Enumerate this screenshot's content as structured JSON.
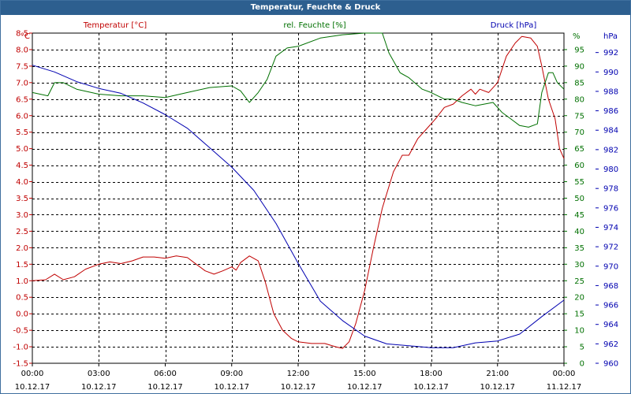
{
  "window_title": "Temperatur, Feuchte & Druck",
  "colors": {
    "temperature": "#c00000",
    "humidity": "#007000",
    "pressure": "#0000b0",
    "titlebar": "#2d5f8f",
    "grid": "#000000"
  },
  "chart_data": {
    "type": "line",
    "title": "Temperatur, Feuchte & Druck",
    "x_hours": [
      0,
      24
    ],
    "x_ticks": [
      {
        "time": "00:00",
        "date": "10.12.17",
        "h": 0
      },
      {
        "time": "03:00",
        "date": "10.12.17",
        "h": 3
      },
      {
        "time": "06:00",
        "date": "10.12.17",
        "h": 6
      },
      {
        "time": "09:00",
        "date": "10.12.17",
        "h": 9
      },
      {
        "time": "12:00",
        "date": "10.12.17",
        "h": 12
      },
      {
        "time": "15:00",
        "date": "10.12.17",
        "h": 15
      },
      {
        "time": "18:00",
        "date": "10.12.17",
        "h": 18
      },
      {
        "time": "21:00",
        "date": "10.12.17",
        "h": 21
      },
      {
        "time": "00:00",
        "date": "11.12.17",
        "h": 24
      }
    ],
    "axes": {
      "temperature": {
        "label": "Temperatur [°C]",
        "unit": "°C",
        "min": -1.5,
        "max": 8.5,
        "ticks": [
          "8.5",
          "8.0",
          "7.5",
          "7.0",
          "6.5",
          "6.0",
          "5.5",
          "5.0",
          "4.5",
          "4.0",
          "3.5",
          "3.0",
          "2.5",
          "2.0",
          "1.5",
          "1.0",
          "0.5",
          "0.0",
          "-0.5",
          "-1.0",
          "-1.5"
        ]
      },
      "humidity": {
        "label": "rel. Feuchte [%]",
        "unit": "%",
        "min": 0,
        "max": 100,
        "ticks": [
          "95",
          "90",
          "85",
          "80",
          "75",
          "70",
          "65",
          "60",
          "55",
          "50",
          "45",
          "40",
          "35",
          "30",
          "25",
          "20",
          "15",
          "10",
          "5",
          "0"
        ]
      },
      "pressure": {
        "label": "Druck [hPa]",
        "unit": "hPa",
        "min": 960,
        "max": 994,
        "ticks": [
          "992",
          "990",
          "988",
          "986",
          "984",
          "982",
          "980",
          "978",
          "976",
          "974",
          "972",
          "970",
          "968",
          "966",
          "964",
          "962",
          "960"
        ]
      }
    },
    "series": [
      {
        "name": "Temperatur",
        "axis": "temperature",
        "points": [
          [
            0,
            1.0
          ],
          [
            0.6,
            1.03
          ],
          [
            1.0,
            1.2
          ],
          [
            1.4,
            1.03
          ],
          [
            1.9,
            1.12
          ],
          [
            2.4,
            1.35
          ],
          [
            3.0,
            1.5
          ],
          [
            3.5,
            1.57
          ],
          [
            4.0,
            1.52
          ],
          [
            4.5,
            1.6
          ],
          [
            5.0,
            1.72
          ],
          [
            5.5,
            1.72
          ],
          [
            6.0,
            1.68
          ],
          [
            6.5,
            1.75
          ],
          [
            7.0,
            1.7
          ],
          [
            7.4,
            1.5
          ],
          [
            7.8,
            1.3
          ],
          [
            8.2,
            1.2
          ],
          [
            8.6,
            1.3
          ],
          [
            9.0,
            1.42
          ],
          [
            9.2,
            1.32
          ],
          [
            9.4,
            1.55
          ],
          [
            9.8,
            1.75
          ],
          [
            10.2,
            1.6
          ],
          [
            10.5,
            1.0
          ],
          [
            10.9,
            0.0
          ],
          [
            11.3,
            -0.5
          ],
          [
            11.7,
            -0.75
          ],
          [
            12.0,
            -0.85
          ],
          [
            12.6,
            -0.9
          ],
          [
            13.2,
            -0.9
          ],
          [
            13.7,
            -1.0
          ],
          [
            14.0,
            -1.05
          ],
          [
            14.3,
            -0.85
          ],
          [
            14.6,
            -0.3
          ],
          [
            15.0,
            0.7
          ],
          [
            15.4,
            2.0
          ],
          [
            15.8,
            3.2
          ],
          [
            16.3,
            4.3
          ],
          [
            16.7,
            4.8
          ],
          [
            17.0,
            4.8
          ],
          [
            17.4,
            5.3
          ],
          [
            17.8,
            5.6
          ],
          [
            18.2,
            5.9
          ],
          [
            18.6,
            6.25
          ],
          [
            19.0,
            6.35
          ],
          [
            19.4,
            6.6
          ],
          [
            19.8,
            6.8
          ],
          [
            20.0,
            6.65
          ],
          [
            20.2,
            6.8
          ],
          [
            20.6,
            6.7
          ],
          [
            21.0,
            7.0
          ],
          [
            21.4,
            7.8
          ],
          [
            21.8,
            8.2
          ],
          [
            22.1,
            8.4
          ],
          [
            22.5,
            8.35
          ],
          [
            22.8,
            8.1
          ],
          [
            23.0,
            7.5
          ],
          [
            23.3,
            6.5
          ],
          [
            23.6,
            5.9
          ],
          [
            23.8,
            5.0
          ],
          [
            24.0,
            4.7
          ]
        ]
      },
      {
        "name": "rel. Feuchte",
        "axis": "humidity",
        "points": [
          [
            0,
            82
          ],
          [
            0.7,
            81
          ],
          [
            1.0,
            85
          ],
          [
            1.4,
            85
          ],
          [
            2.0,
            83
          ],
          [
            3.0,
            81.5
          ],
          [
            4.0,
            81
          ],
          [
            5.0,
            81
          ],
          [
            6.0,
            80.5
          ],
          [
            7.0,
            82
          ],
          [
            8.0,
            83.5
          ],
          [
            9.0,
            84
          ],
          [
            9.4,
            82.5
          ],
          [
            9.8,
            79
          ],
          [
            10.2,
            82
          ],
          [
            10.6,
            86
          ],
          [
            11.0,
            93
          ],
          [
            11.5,
            95.5
          ],
          [
            12.0,
            96
          ],
          [
            13.0,
            98.5
          ],
          [
            14.0,
            99.5
          ],
          [
            15.0,
            100
          ],
          [
            15.8,
            100
          ],
          [
            16.1,
            94
          ],
          [
            16.6,
            88
          ],
          [
            17.0,
            86.5
          ],
          [
            17.6,
            83
          ],
          [
            18.0,
            82
          ],
          [
            18.6,
            80
          ],
          [
            19.0,
            80
          ],
          [
            19.4,
            79
          ],
          [
            20.0,
            78
          ],
          [
            20.4,
            78.5
          ],
          [
            20.8,
            79
          ],
          [
            21.2,
            76
          ],
          [
            21.6,
            74
          ],
          [
            22.0,
            72
          ],
          [
            22.4,
            71.5
          ],
          [
            22.8,
            72.5
          ],
          [
            23.0,
            82
          ],
          [
            23.3,
            88
          ],
          [
            23.5,
            88
          ],
          [
            23.7,
            85
          ],
          [
            24.0,
            83
          ]
        ]
      },
      {
        "name": "Druck",
        "axis": "pressure",
        "points": [
          [
            0,
            990.7
          ],
          [
            1.0,
            990.0
          ],
          [
            2.0,
            989.0
          ],
          [
            3.0,
            988.3
          ],
          [
            4.0,
            987.8
          ],
          [
            5.0,
            986.8
          ],
          [
            6.0,
            985.6
          ],
          [
            7.0,
            984.2
          ],
          [
            8.0,
            982.2
          ],
          [
            9.0,
            980.2
          ],
          [
            10.0,
            977.8
          ],
          [
            11.0,
            974.4
          ],
          [
            12.0,
            970.3
          ],
          [
            13.0,
            966.4
          ],
          [
            14.0,
            964.4
          ],
          [
            15.0,
            962.8
          ],
          [
            16.0,
            962.0
          ],
          [
            17.0,
            961.8
          ],
          [
            18.0,
            961.6
          ],
          [
            19.0,
            961.6
          ],
          [
            20.0,
            962.1
          ],
          [
            21.0,
            962.3
          ],
          [
            22.0,
            963.0
          ],
          [
            23.0,
            964.8
          ],
          [
            24.0,
            966.5
          ]
        ]
      }
    ]
  }
}
